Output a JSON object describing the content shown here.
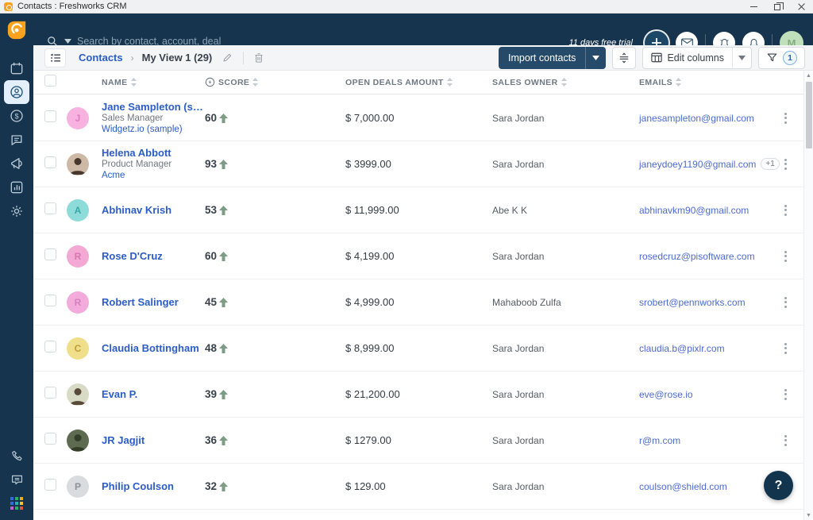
{
  "window": {
    "title": "Contacts : Freshworks CRM"
  },
  "topnav": {
    "search_placeholder": "Search by contact, account, deal",
    "trial_text": "11 days free trial",
    "avatar_initial": "M"
  },
  "toolbar": {
    "breadcrumb_root": "Contacts",
    "breadcrumb_sep": "›",
    "view_name": "My View 1 (29)",
    "import_label": "Import contacts",
    "edit_columns_label": "Edit columns",
    "filter_count": "1"
  },
  "table": {
    "headers": {
      "name": "NAME",
      "score": "SCORE",
      "amount": "OPEN DEALS AMOUNT",
      "owner": "SALES OWNER",
      "emails": "EMAILS"
    },
    "rows": [
      {
        "name": "Jane Sampleton (sa...",
        "title": "Sales Manager",
        "company": "Widgetz.io (sample)",
        "avatar": {
          "kind": "initial",
          "letter": "J",
          "bg": "#f8b2e0",
          "fg": "#dd7cc0"
        },
        "score": "60",
        "amount": "$ 7,000.00",
        "owner": "Sara Jordan",
        "email": "janesampleton@gmail.com",
        "email_extra": ""
      },
      {
        "name": "Helena Abbott",
        "title": "Product Manager",
        "company": "Acme",
        "avatar": {
          "kind": "photo",
          "bg": "#cdb9a6",
          "fg": "#47372c"
        },
        "score": "93",
        "amount": "$ 3999.00",
        "owner": "Sara Jordan",
        "email": "janeydoey1190@gmail.com",
        "email_extra": "+1"
      },
      {
        "name": "Abhinav Krish",
        "title": "",
        "company": "",
        "avatar": {
          "kind": "initial",
          "letter": "A",
          "bg": "#8edcda",
          "fg": "#3aa7a3"
        },
        "score": "53",
        "amount": "$ 11,999.00",
        "owner": "Abe K K",
        "email": "abhinavkm90@gmail.com",
        "email_extra": ""
      },
      {
        "name": "Rose D'Cruz",
        "title": "",
        "company": "",
        "avatar": {
          "kind": "initial",
          "letter": "R",
          "bg": "#f4a8d4",
          "fg": "#d678b3"
        },
        "score": "60",
        "amount": "$ 4,199.00",
        "owner": "Sara Jordan",
        "email": "rosedcruz@pisoftware.com",
        "email_extra": ""
      },
      {
        "name": "Robert Salinger",
        "title": "",
        "company": "",
        "avatar": {
          "kind": "initial",
          "letter": "R",
          "bg": "#f2abdb",
          "fg": "#d77fc0"
        },
        "score": "45",
        "amount": "$ 4,999.00",
        "owner": "Mahaboob Zulfa",
        "email": "srobert@pennworks.com",
        "email_extra": ""
      },
      {
        "name": "Claudia Bottingham",
        "title": "",
        "company": "",
        "avatar": {
          "kind": "initial",
          "letter": "C",
          "bg": "#f0df8a",
          "fg": "#bd9f3c"
        },
        "score": "48",
        "amount": "$ 8,999.00",
        "owner": "Sara Jordan",
        "email": "claudia.b@pixlr.com",
        "email_extra": ""
      },
      {
        "name": "Evan P.",
        "title": "",
        "company": "",
        "avatar": {
          "kind": "photo",
          "bg": "#d8dcc6",
          "fg": "#5a4a3a"
        },
        "score": "39",
        "amount": "$ 21,200.00",
        "owner": "Sara Jordan",
        "email": "eve@rose.io",
        "email_extra": ""
      },
      {
        "name": "JR Jagjit",
        "title": "",
        "company": "",
        "avatar": {
          "kind": "photo",
          "bg": "#5f6b51",
          "fg": "#333d2a"
        },
        "score": "36",
        "amount": "$ 1279.00",
        "owner": "Sara Jordan",
        "email": "r@m.com",
        "email_extra": ""
      },
      {
        "name": "Philip Coulson",
        "title": "",
        "company": "",
        "avatar": {
          "kind": "initial",
          "letter": "P",
          "bg": "#d9dcdf",
          "fg": "#8c9299"
        },
        "score": "32",
        "amount": "$ 129.00",
        "owner": "Sara Jordan",
        "email": "coulson@shield.com",
        "email_extra": ""
      }
    ]
  },
  "help": {
    "label": "?"
  },
  "colors": {
    "navy": "#16344d",
    "accent_blue": "#2c5cc5",
    "email_blue": "#4d6bcd",
    "import_btn": "#264a69",
    "score_up_arrow": "#7d9b85",
    "brand_orange": "#f8a21d"
  },
  "icons": {
    "search": "magnifier",
    "mail": "envelope",
    "whats-new": "alarm-bell",
    "notifications": "bell",
    "calendar": "calendar",
    "contacts": "person-circle",
    "deals": "dollar-circle",
    "conversations": "chat-bubble",
    "campaigns": "megaphone",
    "analytics": "bar-chart",
    "settings": "gear",
    "phone": "handset",
    "chat": "chat-lines",
    "apps": "color-grid",
    "filter": "funnel",
    "edit": "pencil",
    "delete": "trash",
    "sort": "up-down-triangles",
    "row-menu": "kebab-dots"
  }
}
